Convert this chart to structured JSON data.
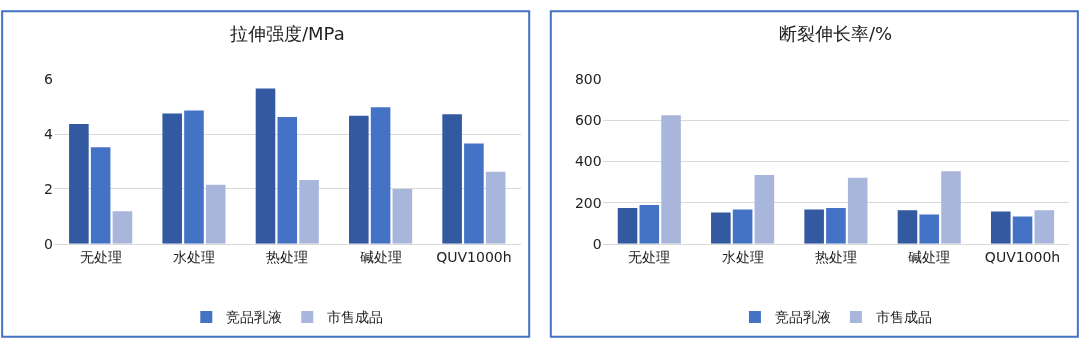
{
  "chart_data": [
    {
      "type": "bar",
      "title": "拉伸强度/MPa",
      "categories": [
        "无处理",
        "水处理",
        "热处理",
        "碱处理",
        "QUV1000h"
      ],
      "ylim": [
        0,
        6
      ],
      "yticks": [
        0,
        2,
        4,
        6
      ],
      "grid": "y",
      "legend": "bottom",
      "series": [
        {
          "color": "#335aa0",
          "values": [
            4.37,
            4.75,
            5.67,
            4.67,
            4.73
          ]
        },
        {
          "name": "竞品乳液",
          "color": "#4472c4",
          "values": [
            3.52,
            4.86,
            4.63,
            4.98,
            3.66
          ]
        },
        {
          "name": "市售成品",
          "color": "#a9b6dc",
          "values": [
            1.19,
            2.15,
            2.33,
            2.0,
            2.63
          ]
        }
      ]
    },
    {
      "type": "bar",
      "title": "断裂伸长率/%",
      "categories": [
        "无处理",
        "水处理",
        "热处理",
        "碱处理",
        "QUV1000h"
      ],
      "ylim": [
        0,
        800
      ],
      "yticks": [
        0,
        200,
        400,
        600,
        800
      ],
      "grid": "y",
      "legend": "bottom",
      "series": [
        {
          "color": "#335aa0",
          "values": [
            174,
            152,
            166,
            163,
            157
          ]
        },
        {
          "name": "竞品乳液",
          "color": "#4472c4",
          "values": [
            188,
            166,
            174,
            142,
            133
          ]
        },
        {
          "name": "市售成品",
          "color": "#a9b6dc",
          "values": [
            625,
            335,
            321,
            353,
            163
          ]
        }
      ]
    }
  ]
}
